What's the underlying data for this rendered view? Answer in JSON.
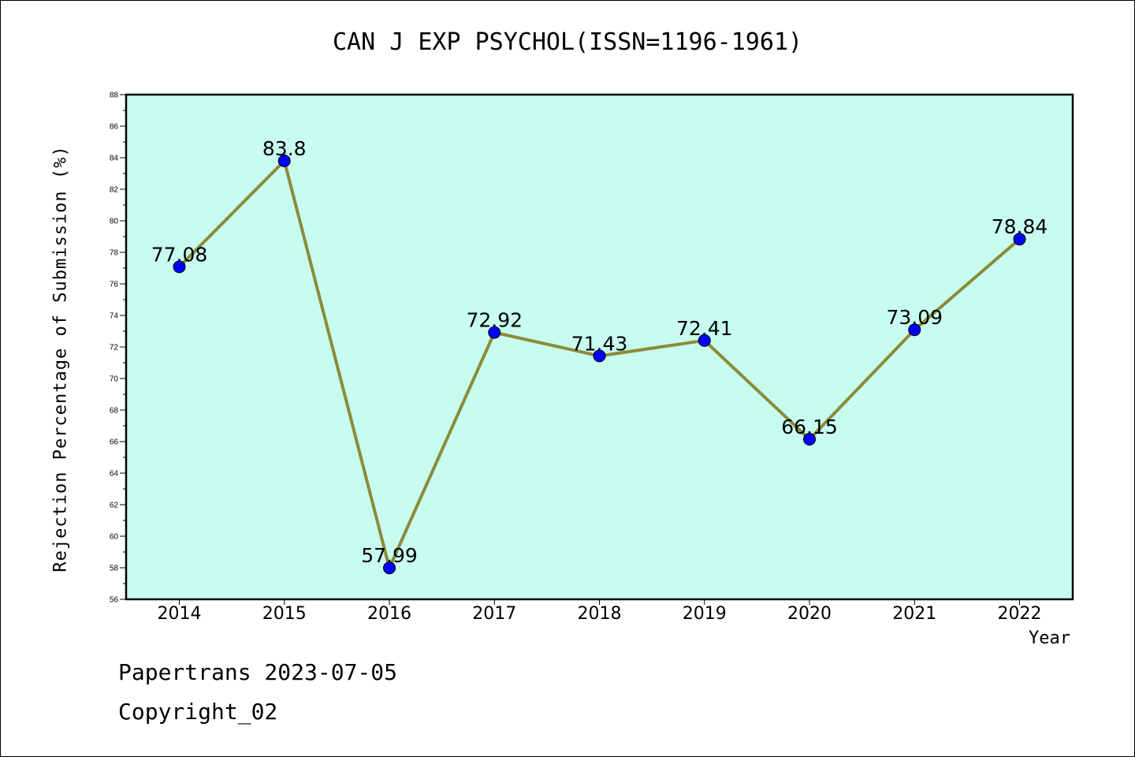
{
  "chart_data": {
    "type": "line",
    "title": "CAN J EXP PSYCHOL(ISSN=1196-1961)",
    "xlabel": "Year",
    "ylabel": "Rejection Percentage of Submission (%)",
    "categories": [
      "2014",
      "2015",
      "2016",
      "2017",
      "2018",
      "2019",
      "2020",
      "2021",
      "2022"
    ],
    "series": [
      {
        "values": [
          77.08,
          83.8,
          57.99,
          72.92,
          71.43,
          72.41,
          66.15,
          73.09,
          78.84
        ],
        "labels": [
          "77.08",
          "83.8",
          "57.99",
          "72.92",
          "71.43",
          "72.41",
          "66.15",
          "73.09",
          "78.84"
        ]
      }
    ],
    "ylim": [
      56,
      88
    ],
    "yticks": [
      56,
      58,
      60,
      62,
      64,
      66,
      68,
      70,
      72,
      74,
      76,
      78,
      80,
      82,
      84,
      86,
      88
    ],
    "grid": false,
    "colors": {
      "plot_background": "#c8fcee",
      "line": "#8b8b3a",
      "marker": "#0000ff"
    }
  },
  "footer": {
    "line1": "Papertrans 2023-07-05",
    "line2": "Copyright_02"
  }
}
